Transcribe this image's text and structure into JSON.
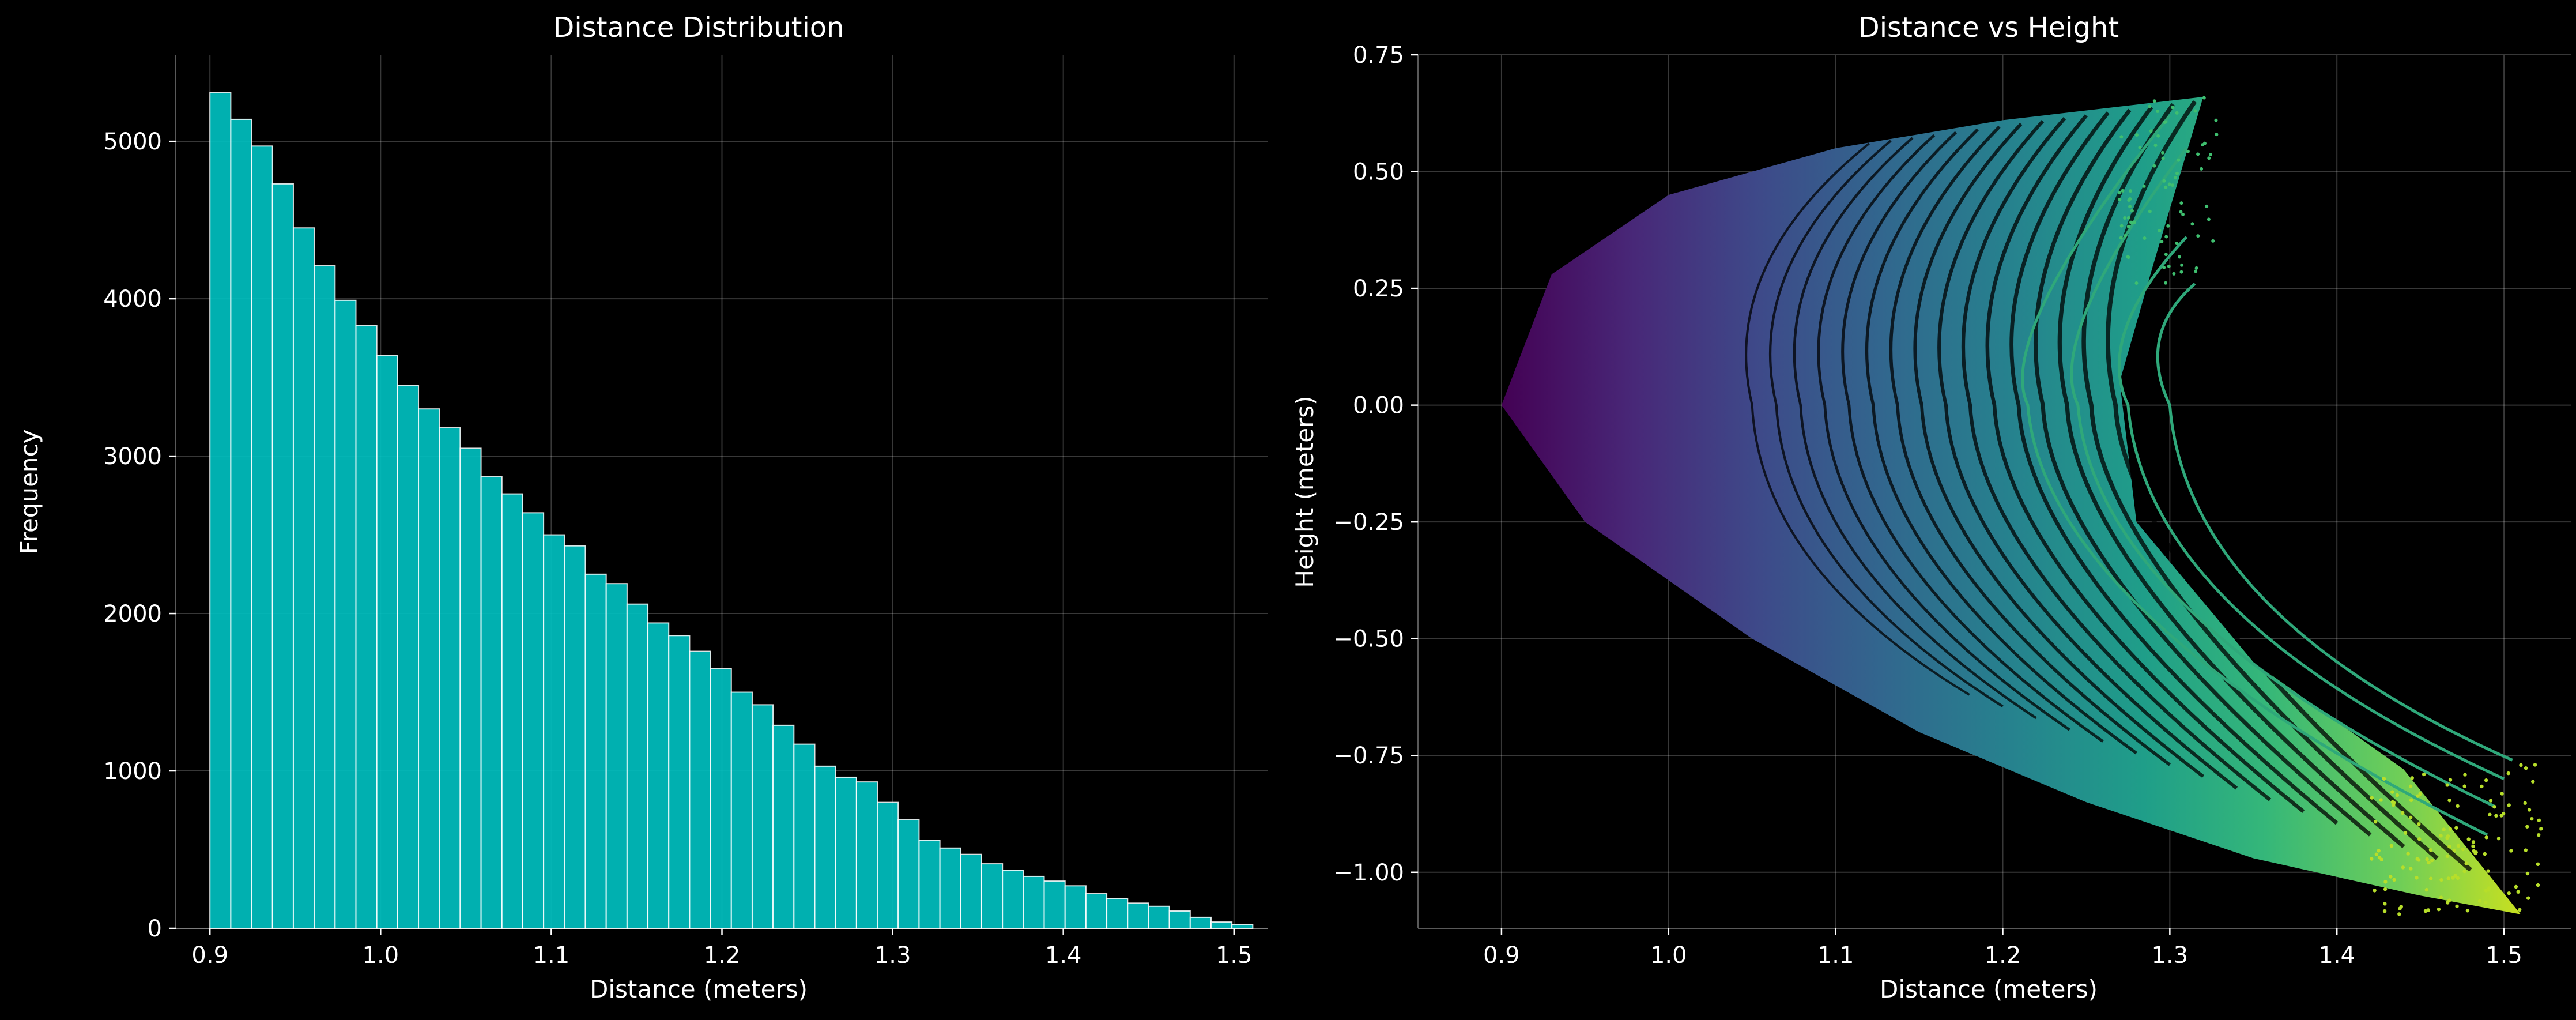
{
  "colors": {
    "background": "#000000",
    "bar_fill": "#00bfbf",
    "text": "#ffffff",
    "grid": "#ffffff"
  },
  "chart_data": [
    {
      "type": "bar",
      "title": "Distance Distribution",
      "xlabel": "Distance (meters)",
      "ylabel": "Frequency",
      "xlim": [
        0.88,
        1.52
      ],
      "ylim": [
        0,
        5550
      ],
      "grid": true,
      "xticks": [
        "0.9",
        "1.0",
        "1.1",
        "1.2",
        "1.3",
        "1.4",
        "1.5"
      ],
      "yticks": [
        "0",
        "1000",
        "2000",
        "3000",
        "4000",
        "5000"
      ],
      "bin_start": 0.9,
      "bin_width": 0.01222,
      "values": [
        5310,
        5140,
        4970,
        4730,
        4450,
        4210,
        3990,
        3830,
        3640,
        3450,
        3300,
        3180,
        3050,
        2870,
        2760,
        2640,
        2500,
        2430,
        2250,
        2190,
        2060,
        1940,
        1860,
        1760,
        1650,
        1500,
        1420,
        1290,
        1170,
        1030,
        960,
        930,
        800,
        690,
        560,
        510,
        470,
        410,
        370,
        330,
        300,
        270,
        220,
        190,
        160,
        140,
        110,
        70,
        40,
        25
      ]
    },
    {
      "type": "scatter",
      "title": "Distance vs Height",
      "xlabel": "Distance (meters)",
      "ylabel": "Height (meters)",
      "xlim": [
        0.85,
        1.54
      ],
      "ylim": [
        -1.12,
        0.75
      ],
      "grid": true,
      "xticks": [
        "0.9",
        "1.0",
        "1.1",
        "1.2",
        "1.3",
        "1.4",
        "1.5"
      ],
      "yticks": [
        "0.75",
        "0.50",
        "0.25",
        "0.00",
        "−0.25",
        "−0.50",
        "−0.75",
        "−1.00"
      ],
      "colormap": "viridis (color encodes distance)",
      "description_points": {
        "nose": [
          0.9,
          0.0
        ],
        "upper_tip": [
          1.32,
          0.66
        ],
        "lower_tip": [
          1.51,
          -1.09
        ]
      }
    }
  ]
}
